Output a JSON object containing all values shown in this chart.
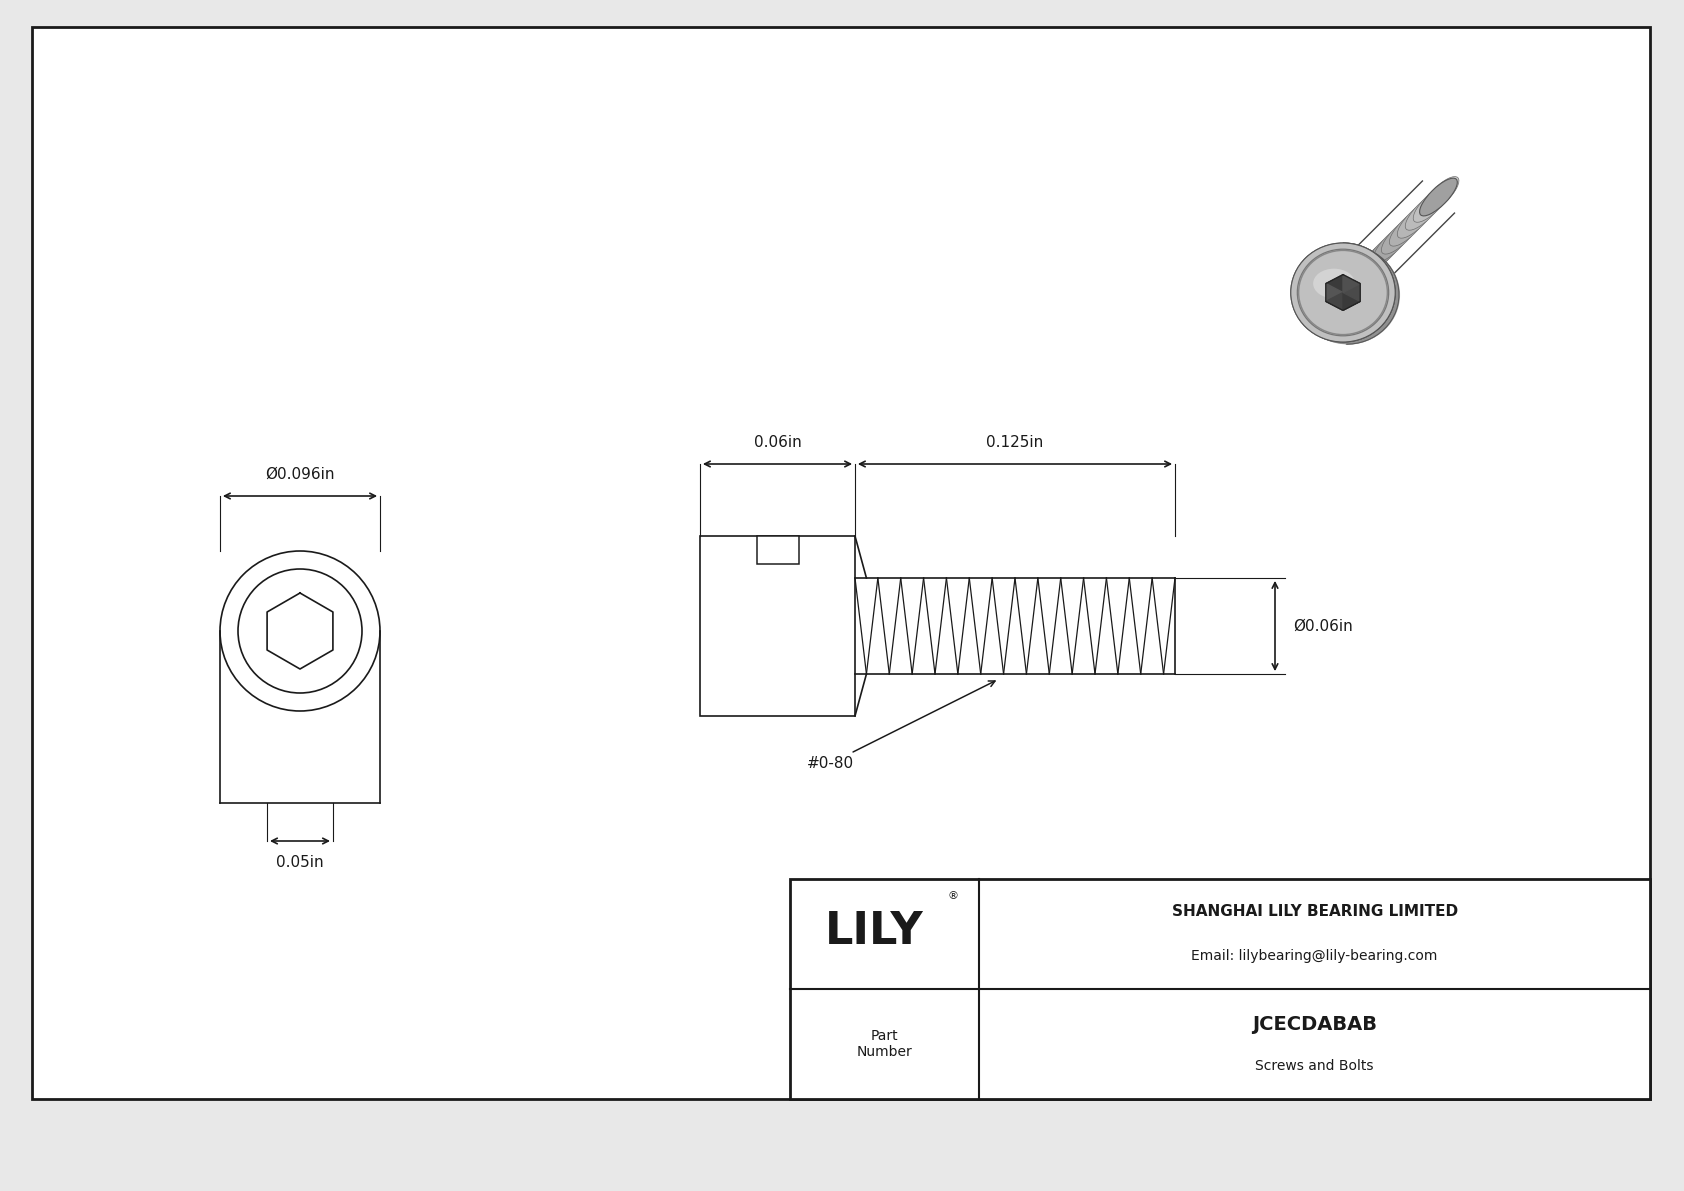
{
  "bg_color": "#e8e8e8",
  "drawing_bg": "#ffffff",
  "line_color": "#1a1a1a",
  "title": "JCECDABAB",
  "subtitle": "Screws and Bolts",
  "company": "SHANGHAI LILY BEARING LIMITED",
  "email": "Email: lilybearing@lily-bearing.com",
  "part_label": "Part\nNumber",
  "dim_head_diameter": "Ø0.096in",
  "dim_head_length": "0.06in",
  "dim_thread_length": "0.125in",
  "dim_thread_diameter": "Ø0.06in",
  "dim_hex_width": "0.05in",
  "thread_label": "#0-80",
  "font_size_dims": 11,
  "font_size_title": 14,
  "font_size_company": 10,
  "font_size_lily": 32
}
